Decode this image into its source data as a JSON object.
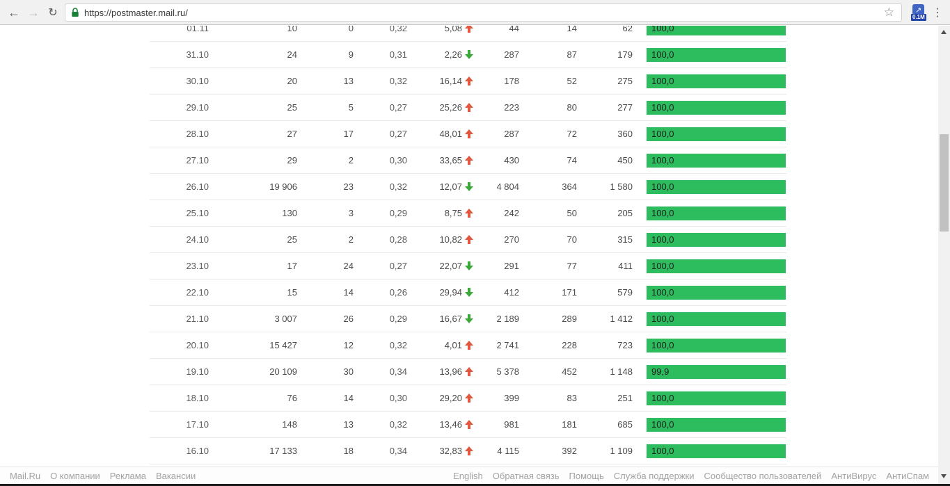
{
  "browser": {
    "url": "https://postmaster.mail.ru/",
    "extension_badge": "0.1M",
    "icons": {
      "back": "←",
      "forward": "→",
      "reload": "↻",
      "bookmark": "☆",
      "menu": "⋮",
      "ext_arrow": "↗"
    }
  },
  "colors": {
    "bar_green": "#2ebd5e",
    "trend_up_red": "#e2573e",
    "trend_down_green": "#3aa93a",
    "ext_icon_blue": "#4064c4",
    "ext_badge_blue": "#2142ab",
    "padlock_green": "#188038"
  },
  "chart_data": {
    "type": "table",
    "title": "",
    "note": "postmaster.mail.ru daily email statistics; last column is delivery percentage rendered as green bar",
    "columns": [
      "date",
      "col1",
      "col2",
      "col3",
      "trend_value",
      "trend_direction",
      "col5",
      "col6",
      "col7",
      "delivery_pct"
    ],
    "rows": [
      {
        "date": "01.11",
        "c1": "10",
        "c2": "0",
        "c3": "0,32",
        "c4": "5,08",
        "trend": "up",
        "c5": "44",
        "c6": "14",
        "c7": "62",
        "bar": "100,0",
        "bar_pct": 100
      },
      {
        "date": "31.10",
        "c1": "24",
        "c2": "9",
        "c3": "0,31",
        "c4": "2,26",
        "trend": "down",
        "c5": "287",
        "c6": "87",
        "c7": "179",
        "bar": "100,0",
        "bar_pct": 100
      },
      {
        "date": "30.10",
        "c1": "20",
        "c2": "13",
        "c3": "0,32",
        "c4": "16,14",
        "trend": "up",
        "c5": "178",
        "c6": "52",
        "c7": "275",
        "bar": "100,0",
        "bar_pct": 100
      },
      {
        "date": "29.10",
        "c1": "25",
        "c2": "5",
        "c3": "0,27",
        "c4": "25,26",
        "trend": "up",
        "c5": "223",
        "c6": "80",
        "c7": "277",
        "bar": "100,0",
        "bar_pct": 100
      },
      {
        "date": "28.10",
        "c1": "27",
        "c2": "17",
        "c3": "0,27",
        "c4": "48,01",
        "trend": "up",
        "c5": "287",
        "c6": "72",
        "c7": "360",
        "bar": "100,0",
        "bar_pct": 100
      },
      {
        "date": "27.10",
        "c1": "29",
        "c2": "2",
        "c3": "0,30",
        "c4": "33,65",
        "trend": "up",
        "c5": "430",
        "c6": "74",
        "c7": "450",
        "bar": "100,0",
        "bar_pct": 100
      },
      {
        "date": "26.10",
        "c1": "19 906",
        "c2": "23",
        "c3": "0,32",
        "c4": "12,07",
        "trend": "down",
        "c5": "4 804",
        "c6": "364",
        "c7": "1 580",
        "bar": "100,0",
        "bar_pct": 100
      },
      {
        "date": "25.10",
        "c1": "130",
        "c2": "3",
        "c3": "0,29",
        "c4": "8,75",
        "trend": "up",
        "c5": "242",
        "c6": "50",
        "c7": "205",
        "bar": "100,0",
        "bar_pct": 100
      },
      {
        "date": "24.10",
        "c1": "25",
        "c2": "2",
        "c3": "0,28",
        "c4": "10,82",
        "trend": "up",
        "c5": "270",
        "c6": "70",
        "c7": "315",
        "bar": "100,0",
        "bar_pct": 100
      },
      {
        "date": "23.10",
        "c1": "17",
        "c2": "24",
        "c3": "0,27",
        "c4": "22,07",
        "trend": "down",
        "c5": "291",
        "c6": "77",
        "c7": "411",
        "bar": "100,0",
        "bar_pct": 100
      },
      {
        "date": "22.10",
        "c1": "15",
        "c2": "14",
        "c3": "0,26",
        "c4": "29,94",
        "trend": "down",
        "c5": "412",
        "c6": "171",
        "c7": "579",
        "bar": "100,0",
        "bar_pct": 100
      },
      {
        "date": "21.10",
        "c1": "3 007",
        "c2": "26",
        "c3": "0,29",
        "c4": "16,67",
        "trend": "down",
        "c5": "2 189",
        "c6": "289",
        "c7": "1 412",
        "bar": "100,0",
        "bar_pct": 100
      },
      {
        "date": "20.10",
        "c1": "15 427",
        "c2": "12",
        "c3": "0,32",
        "c4": "4,01",
        "trend": "up",
        "c5": "2 741",
        "c6": "228",
        "c7": "723",
        "bar": "100,0",
        "bar_pct": 100
      },
      {
        "date": "19.10",
        "c1": "20 109",
        "c2": "30",
        "c3": "0,34",
        "c4": "13,96",
        "trend": "up",
        "c5": "5 378",
        "c6": "452",
        "c7": "1 148",
        "bar": "99,9",
        "bar_pct": 99.9
      },
      {
        "date": "18.10",
        "c1": "76",
        "c2": "14",
        "c3": "0,30",
        "c4": "29,20",
        "trend": "up",
        "c5": "399",
        "c6": "83",
        "c7": "251",
        "bar": "100,0",
        "bar_pct": 100
      },
      {
        "date": "17.10",
        "c1": "148",
        "c2": "13",
        "c3": "0,32",
        "c4": "13,46",
        "trend": "up",
        "c5": "981",
        "c6": "181",
        "c7": "685",
        "bar": "100,0",
        "bar_pct": 100
      },
      {
        "date": "16.10",
        "c1": "17 133",
        "c2": "18",
        "c3": "0,34",
        "c4": "32,83",
        "trend": "up",
        "c5": "4 115",
        "c6": "392",
        "c7": "1 109",
        "bar": "100,0",
        "bar_pct": 100
      }
    ]
  },
  "footer": {
    "left_links": [
      "Mail.Ru",
      "О компании",
      "Реклама",
      "Вакансии"
    ],
    "right_links": [
      "English",
      "Обратная связь",
      "Помощь",
      "Служба поддержки",
      "Сообщество пользователей",
      "АнтиВирус",
      "АнтиСпам"
    ]
  }
}
